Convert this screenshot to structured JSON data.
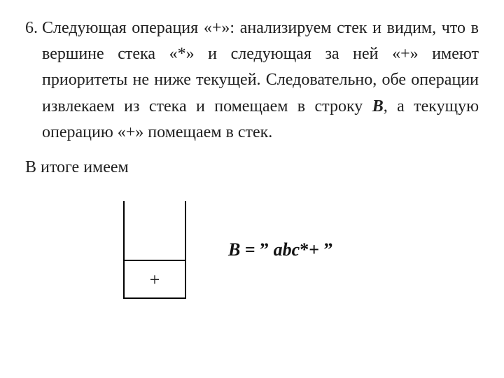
{
  "item": {
    "number": "6.",
    "text_html": "Следующая операция «+»: анализируем стек и видим, что в вершине стека «*» и следующая за ней «+» имеют приоритеты не ниже текущей. Следовательно, обе операции извлекаем из стека и помещаем в строку <em><strong>B</strong></em>, а текущую операцию «+» помещаем в стек."
  },
  "result_label": "В итоге имеем",
  "stack": {
    "cells": [
      "+"
    ]
  },
  "equation": {
    "lhs": "B",
    "eq": " = ",
    "open_q": "”",
    "expr_vars": "abc",
    "expr_ops": "*+",
    "close_q": " ”"
  },
  "colors": {
    "text": "#202020",
    "line": "#000000",
    "bg": "#ffffff"
  },
  "fonts": {
    "body_size_pt": 18,
    "eqn_size_pt": 19
  }
}
